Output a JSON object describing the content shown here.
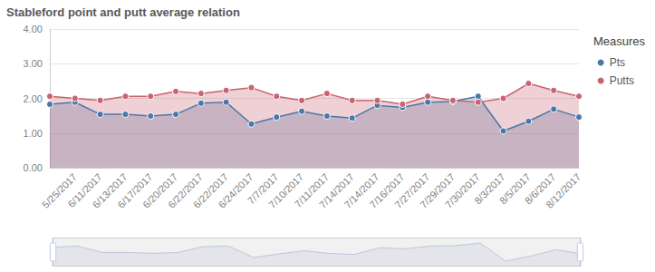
{
  "chart_data": {
    "type": "line",
    "title": "Stableford point and putt average relation",
    "legend_title": "Measures",
    "legend": "right",
    "grid": true,
    "categories": [
      null,
      "5/25/2017",
      "6/11/2017",
      "6/13/2017",
      "6/17/2017",
      "6/20/2017",
      "6/22/2017",
      "6/22/2017",
      "6/24/2017",
      "7/7/2017",
      "7/10/2017",
      "7/11/2017",
      "7/14/2017",
      "7/14/2017",
      "7/16/2017",
      "7/27/2017",
      "7/29/2017",
      "7/30/2017",
      "8/3/2017",
      "8/5/2017",
      "8/6/2017",
      "8/12/2017"
    ],
    "series": [
      {
        "name": "Pts",
        "color": "#4a77ab",
        "marker": "circle",
        "values": [
          1.83,
          1.89,
          1.54,
          1.54,
          1.49,
          1.54,
          1.86,
          1.89,
          1.26,
          1.46,
          1.63,
          1.49,
          1.43,
          1.8,
          1.74,
          1.89,
          1.91,
          2.06,
          1.06,
          1.34,
          1.69,
          1.46
        ]
      },
      {
        "name": "Putts",
        "color": "#c9636f",
        "marker": "circle",
        "values": [
          2.06,
          2.0,
          1.94,
          2.06,
          2.06,
          2.2,
          2.14,
          2.23,
          2.31,
          2.06,
          1.94,
          2.14,
          1.94,
          1.94,
          1.83,
          2.06,
          1.94,
          1.89,
          2.0,
          2.43,
          2.23,
          2.06
        ]
      }
    ],
    "ylim": [
      0,
      4
    ],
    "yticks": [
      {
        "value": 0,
        "label": "0.00"
      },
      {
        "value": 1,
        "label": "1.00"
      },
      {
        "value": 2,
        "label": "2.00"
      },
      {
        "value": 3,
        "label": "3.00"
      },
      {
        "value": 4,
        "label": "4.00"
      }
    ]
  }
}
